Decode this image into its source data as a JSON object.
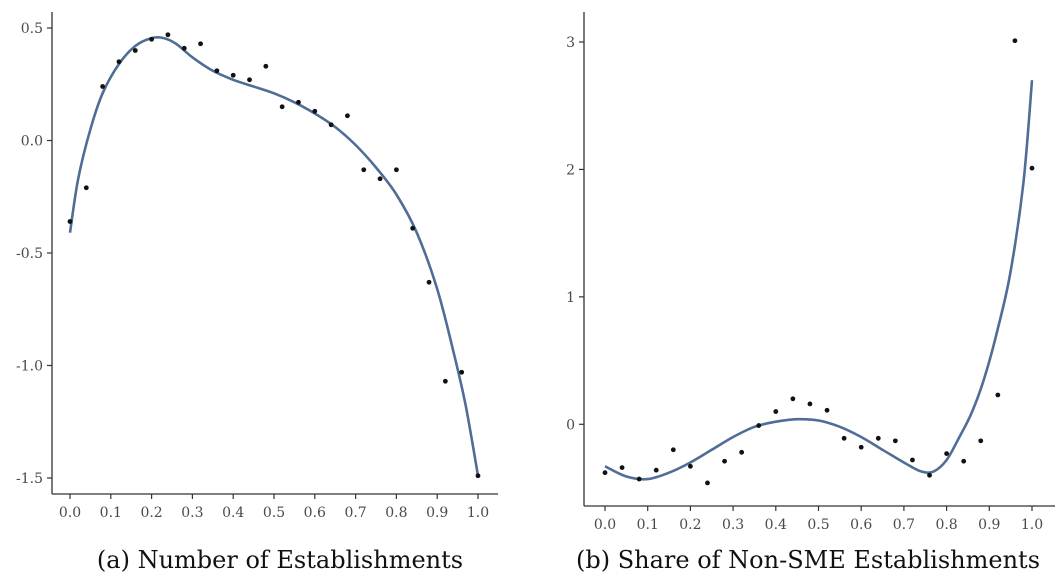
{
  "colors": {
    "curve": "#4f6d96",
    "point": "#111111",
    "axis": "#333333"
  },
  "chart_data": [
    {
      "type": "scatter",
      "title": "",
      "caption": "(a) Number of Establishments",
      "xlim": [
        0.0,
        1.0
      ],
      "ylim": [
        -1.5,
        0.5
      ],
      "xticks": [
        "0.0",
        "0.1",
        "0.2",
        "0.3",
        "0.4",
        "0.5",
        "0.6",
        "0.7",
        "0.8",
        "0.9",
        "1.0"
      ],
      "yticks": [
        "0.5",
        "0.0",
        "-0.5",
        "-1.0",
        "-1.5"
      ],
      "ytick_values": [
        0.5,
        0.0,
        -0.5,
        -1.0,
        -1.5
      ],
      "grid": false,
      "points": {
        "x": [
          0.0,
          0.04,
          0.08,
          0.12,
          0.16,
          0.2,
          0.24,
          0.28,
          0.32,
          0.36,
          0.4,
          0.44,
          0.48,
          0.52,
          0.56,
          0.6,
          0.64,
          0.68,
          0.72,
          0.76,
          0.8,
          0.84,
          0.88,
          0.92,
          0.96,
          1.0
        ],
        "y": [
          -0.36,
          -0.21,
          0.24,
          0.35,
          0.4,
          0.45,
          0.47,
          0.41,
          0.43,
          0.31,
          0.29,
          0.27,
          0.33,
          0.15,
          0.17,
          0.13,
          0.07,
          0.11,
          -0.13,
          -0.17,
          -0.13,
          -0.39,
          -0.63,
          -1.07,
          -1.03,
          -1.49
        ]
      },
      "fit_curve": {
        "x": [
          0.0,
          0.02,
          0.05,
          0.08,
          0.12,
          0.16,
          0.2,
          0.23,
          0.26,
          0.3,
          0.35,
          0.4,
          0.45,
          0.5,
          0.55,
          0.6,
          0.65,
          0.7,
          0.75,
          0.8,
          0.85,
          0.9,
          0.94,
          0.97,
          1.0
        ],
        "y": [
          -0.41,
          -0.17,
          0.05,
          0.21,
          0.34,
          0.42,
          0.455,
          0.455,
          0.43,
          0.37,
          0.31,
          0.27,
          0.24,
          0.21,
          0.17,
          0.12,
          0.06,
          -0.02,
          -0.12,
          -0.24,
          -0.41,
          -0.66,
          -0.94,
          -1.18,
          -1.49
        ]
      }
    },
    {
      "type": "scatter",
      "title": "",
      "caption": "(b) Share of Non-SME Establishments",
      "xlim": [
        0.0,
        1.0
      ],
      "ylim": [
        -0.5,
        3.0
      ],
      "xticks": [
        "0.0",
        "0.1",
        "0.2",
        "0.3",
        "0.4",
        "0.5",
        "0.6",
        "0.7",
        "0.8",
        "0.9",
        "1.0"
      ],
      "yticks": [
        "3",
        "2",
        "1",
        "0"
      ],
      "ytick_values": [
        3,
        2,
        1,
        0
      ],
      "grid": false,
      "points": {
        "x": [
          0.0,
          0.04,
          0.08,
          0.12,
          0.16,
          0.2,
          0.24,
          0.28,
          0.32,
          0.36,
          0.4,
          0.44,
          0.48,
          0.52,
          0.56,
          0.6,
          0.64,
          0.68,
          0.72,
          0.76,
          0.8,
          0.84,
          0.88,
          0.92,
          0.96,
          1.0
        ],
        "y": [
          -0.38,
          -0.34,
          -0.43,
          -0.36,
          -0.2,
          -0.33,
          -0.46,
          -0.29,
          -0.22,
          -0.01,
          0.1,
          0.2,
          0.16,
          0.11,
          -0.11,
          -0.18,
          -0.11,
          -0.13,
          -0.28,
          -0.4,
          -0.23,
          -0.29,
          -0.13,
          0.23,
          3.01,
          2.01
        ]
      },
      "fit_curve": {
        "x": [
          0.0,
          0.05,
          0.1,
          0.15,
          0.2,
          0.25,
          0.3,
          0.35,
          0.4,
          0.45,
          0.5,
          0.55,
          0.6,
          0.65,
          0.7,
          0.74,
          0.77,
          0.8,
          0.83,
          0.86,
          0.89,
          0.92,
          0.95,
          0.98,
          1.0
        ],
        "y": [
          -0.33,
          -0.41,
          -0.43,
          -0.38,
          -0.3,
          -0.2,
          -0.1,
          -0.02,
          0.02,
          0.04,
          0.03,
          -0.02,
          -0.1,
          -0.2,
          -0.3,
          -0.37,
          -0.37,
          -0.28,
          -0.1,
          0.1,
          0.38,
          0.75,
          1.2,
          1.9,
          2.7
        ]
      }
    }
  ]
}
